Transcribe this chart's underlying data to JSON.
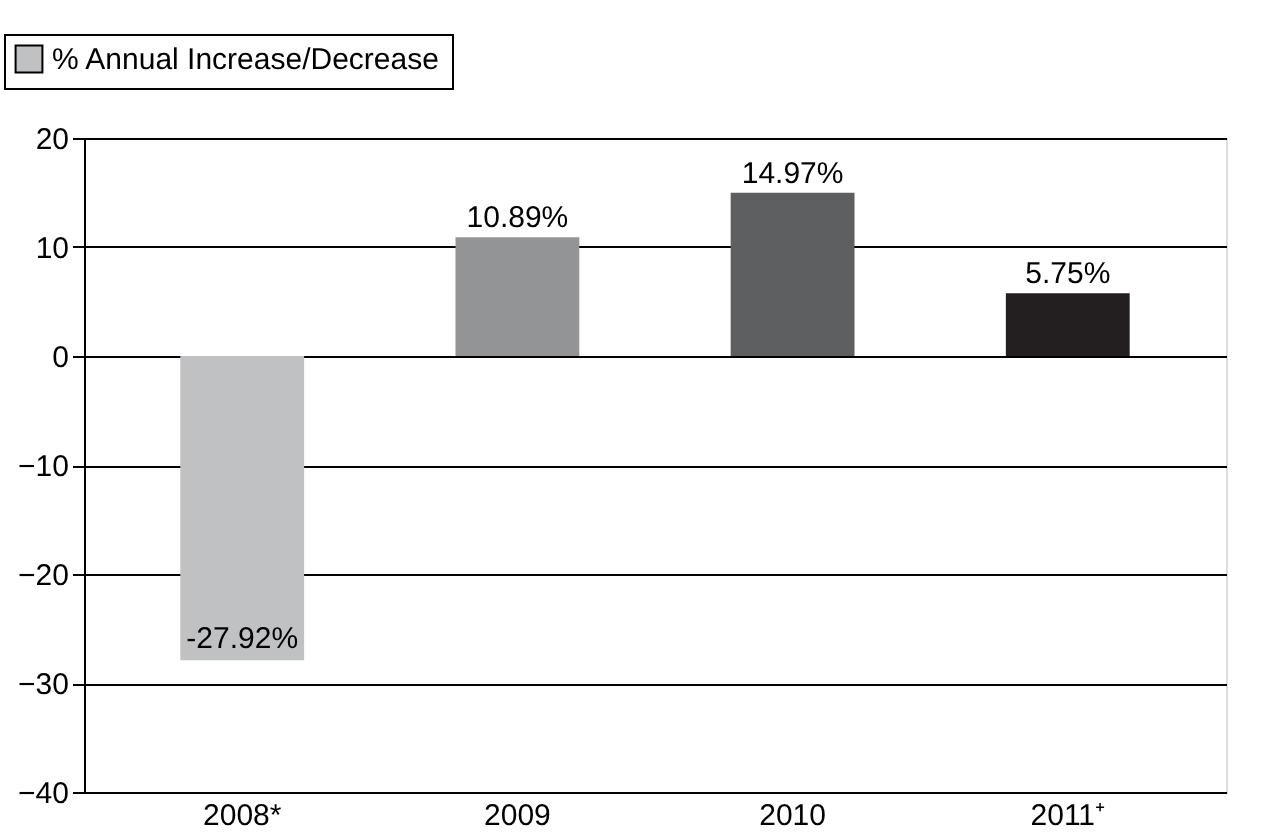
{
  "chart_data": {
    "type": "bar",
    "categories": [
      "2008*",
      "2009",
      "2010",
      "2011⁺"
    ],
    "series": [
      {
        "name": "% Annual Increase/Decrease",
        "color": "#c0c1c3",
        "colors": [
          "#c0c1c3",
          "#939496",
          "#5e5f61",
          "#231f20"
        ],
        "values": [
          -27.92,
          10.89,
          14.97,
          5.75
        ],
        "value_labels": [
          "-27.92%",
          "10.89%",
          "14.97%",
          "5.75%"
        ]
      }
    ],
    "ylim": [
      -40,
      20
    ],
    "yticks": [
      -40,
      -30,
      -20,
      -10,
      0,
      10,
      20
    ],
    "grid": "y",
    "legend": "top left"
  }
}
